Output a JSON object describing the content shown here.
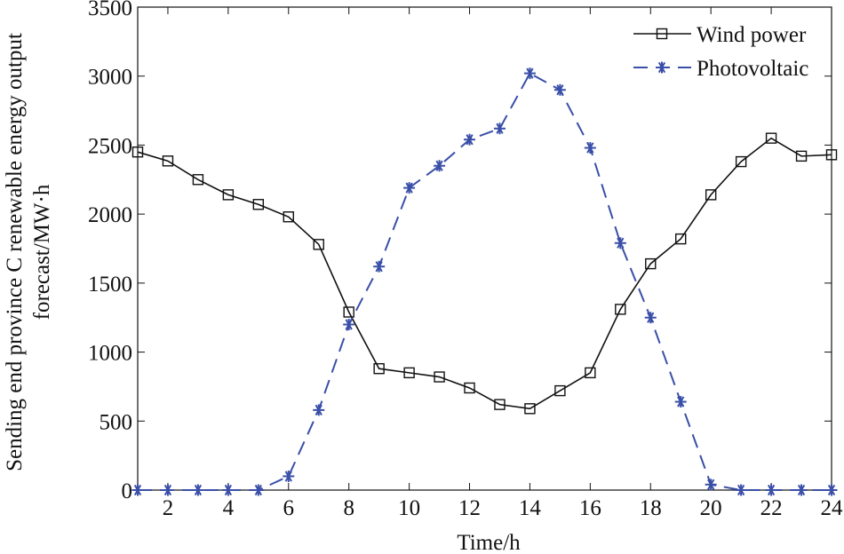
{
  "chart_data": {
    "type": "line",
    "xlabel": "Time/h",
    "ylabel_lines": [
      "Sending end province C renewable energy output",
      "forecast/MW·h"
    ],
    "xlim": [
      1,
      24
    ],
    "ylim": [
      0,
      3500
    ],
    "xticks": [
      2,
      4,
      6,
      8,
      10,
      12,
      14,
      16,
      18,
      20,
      22,
      24
    ],
    "yticks": [
      0,
      500,
      1000,
      1500,
      2000,
      2500,
      3000,
      3500
    ],
    "grid": false,
    "legend_position": "top-right",
    "x": [
      1,
      2,
      3,
      4,
      5,
      6,
      7,
      8,
      9,
      10,
      11,
      12,
      13,
      14,
      15,
      16,
      17,
      18,
      19,
      20,
      21,
      22,
      23,
      24
    ],
    "series": [
      {
        "name": "Wind power",
        "color": "#111111",
        "line_style": "solid",
        "marker": "square",
        "values": [
          2450,
          2385,
          2250,
          2140,
          2070,
          1980,
          1780,
          1290,
          880,
          850,
          820,
          740,
          620,
          590,
          720,
          850,
          1310,
          1640,
          1820,
          2140,
          2380,
          2550,
          2420,
          2430
        ]
      },
      {
        "name": "Photovoltaic",
        "color": "#3a4fa8",
        "line_style": "dashed",
        "marker": "asterisk",
        "values": [
          0,
          0,
          0,
          0,
          0,
          100,
          580,
          1200,
          1620,
          2190,
          2350,
          2540,
          2620,
          3020,
          2900,
          2480,
          1790,
          1250,
          640,
          40,
          0,
          0,
          0,
          0
        ]
      }
    ]
  }
}
